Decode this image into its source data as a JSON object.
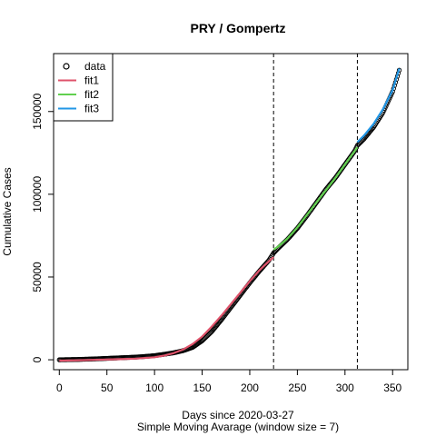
{
  "chart_data": {
    "type": "line",
    "title": "PRY / Gompertz",
    "xlabel": "Days since 2020-03-27",
    "xlabel2": "Simple Moving Avarage (window size = 7)",
    "ylabel": "Cumulative Cases",
    "xlim": [
      -6,
      366
    ],
    "ylim": [
      -6000,
      185000
    ],
    "xticks": [
      0,
      50,
      100,
      150,
      200,
      250,
      300,
      350
    ],
    "yticks": [
      0,
      50000,
      100000,
      150000
    ],
    "grid": false,
    "legend_position": "top-left",
    "vlines": [
      225,
      313
    ],
    "legend": [
      {
        "label": "data",
        "kind": "point",
        "color": "#000000"
      },
      {
        "label": "fit1",
        "kind": "line",
        "color": "#DF536B"
      },
      {
        "label": "fit2",
        "kind": "line",
        "color": "#61D04F"
      },
      {
        "label": "fit3",
        "kind": "line",
        "color": "#2297E6"
      }
    ],
    "data_knots": [
      [
        0,
        0
      ],
      [
        20,
        200
      ],
      [
        40,
        600
      ],
      [
        60,
        1100
      ],
      [
        80,
        1600
      ],
      [
        90,
        2000
      ],
      [
        100,
        2500
      ],
      [
        110,
        3300
      ],
      [
        120,
        4200
      ],
      [
        130,
        5500
      ],
      [
        140,
        7500
      ],
      [
        150,
        11500
      ],
      [
        160,
        17000
      ],
      [
        170,
        24000
      ],
      [
        180,
        31500
      ],
      [
        190,
        39000
      ],
      [
        200,
        46500
      ],
      [
        210,
        53500
      ],
      [
        220,
        60000
      ],
      [
        225,
        64500
      ],
      [
        230,
        67500
      ],
      [
        240,
        73000
      ],
      [
        250,
        79500
      ],
      [
        260,
        87000
      ],
      [
        270,
        95000
      ],
      [
        280,
        103000
      ],
      [
        290,
        110000
      ],
      [
        300,
        118000
      ],
      [
        310,
        126000
      ],
      [
        313,
        129500
      ],
      [
        320,
        133500
      ],
      [
        330,
        140500
      ],
      [
        340,
        149500
      ],
      [
        350,
        162000
      ],
      [
        357,
        175000
      ]
    ],
    "series": [
      {
        "name": "fit1",
        "color": "#DF536B",
        "x": [
          0,
          20,
          40,
          60,
          80,
          100,
          110,
          120,
          130,
          140,
          150,
          160,
          170,
          180,
          190,
          200,
          210,
          220,
          225
        ],
        "y": [
          -500,
          -300,
          0,
          300,
          700,
          1500,
          2500,
          4000,
          6200,
          9500,
          14000,
          20000,
          26500,
          33500,
          40500,
          47500,
          54000,
          59500,
          62000
        ]
      },
      {
        "name": "fit2",
        "color": "#61D04F",
        "x": [
          225,
          230,
          240,
          250,
          260,
          270,
          280,
          290,
          300,
          310,
          313
        ],
        "y": [
          66500,
          68500,
          73500,
          80000,
          87500,
          95000,
          102500,
          110000,
          118000,
          126000,
          128500
        ]
      },
      {
        "name": "fit3",
        "color": "#2297E6",
        "x": [
          313,
          320,
          330,
          340,
          350,
          357
        ],
        "y": [
          131500,
          135500,
          142500,
          151500,
          163000,
          176000
        ]
      }
    ]
  }
}
